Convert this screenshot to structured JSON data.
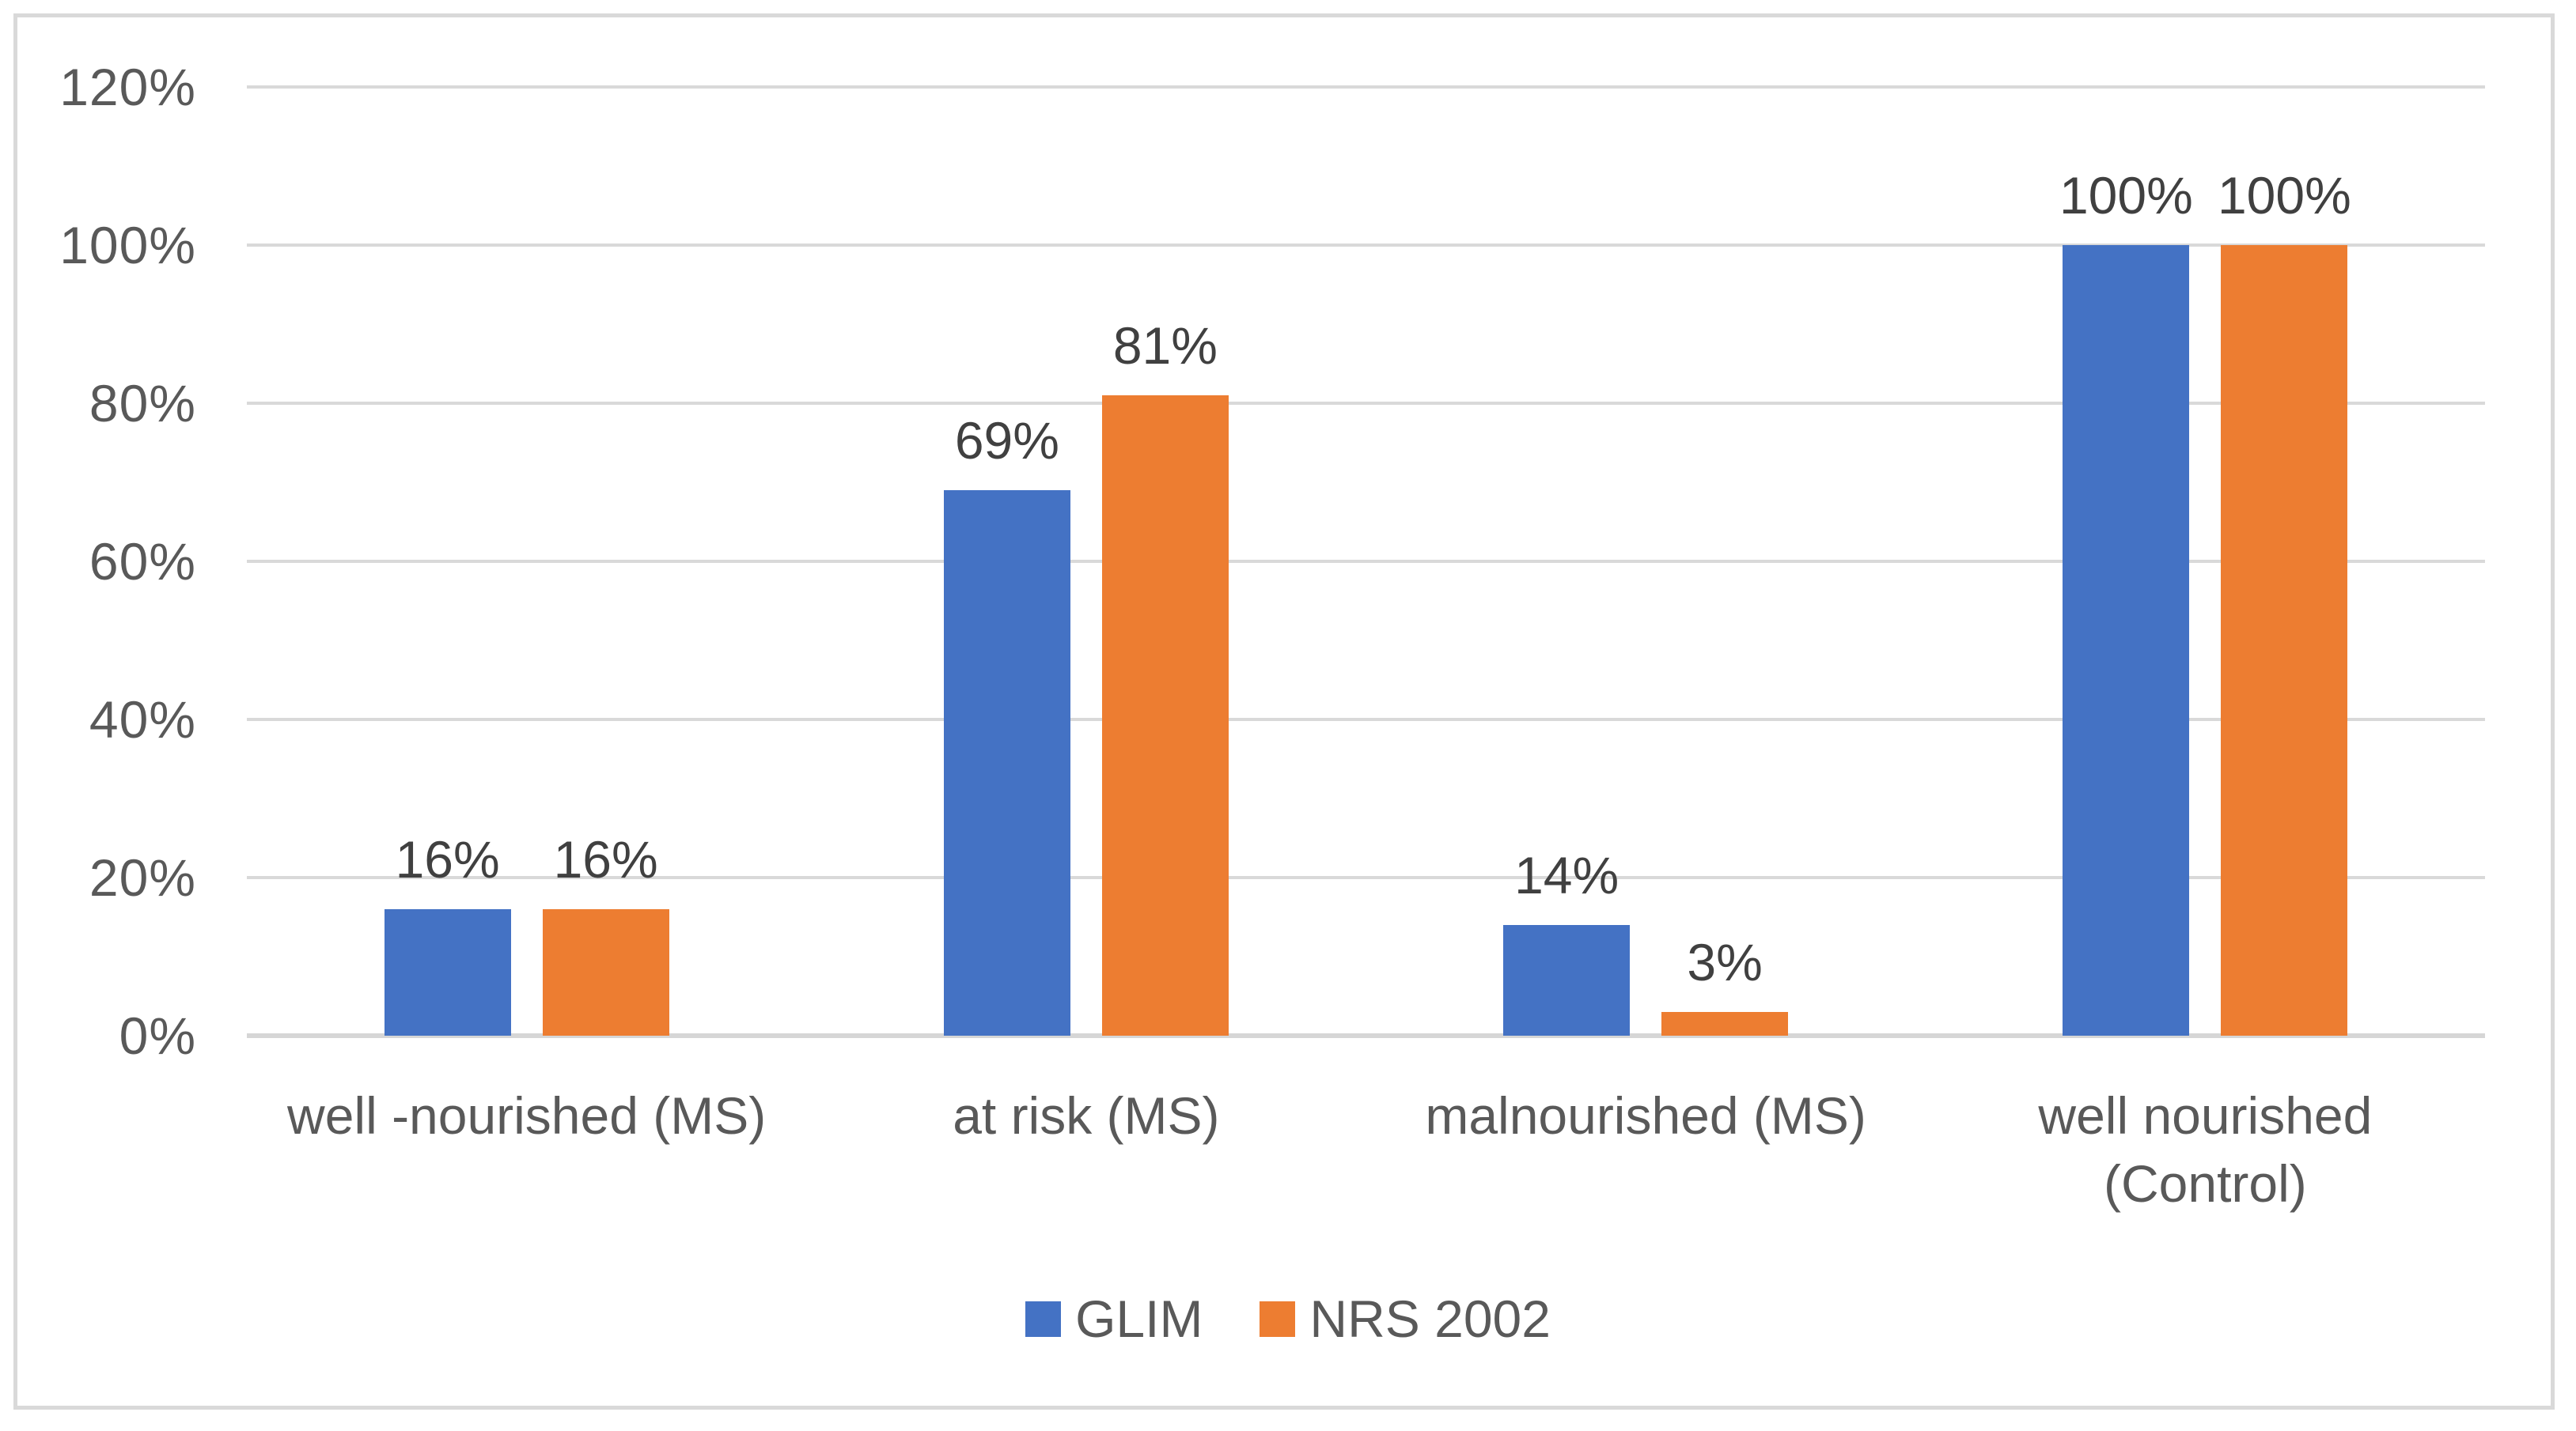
{
  "chart_data": {
    "type": "bar",
    "title": "",
    "categories": [
      "well -nourished (MS)",
      "at risk (MS)",
      "malnourished (MS)",
      "well nourished (Control)"
    ],
    "series": [
      {
        "name": "GLIM",
        "color": "#4472C4",
        "values": [
          16,
          69,
          14,
          100
        ]
      },
      {
        "name": "NRS 2002",
        "color": "#ED7D31",
        "values": [
          16,
          81,
          3,
          100
        ]
      }
    ],
    "data_labels": [
      "16%",
      "69%",
      "14%",
      "100%",
      "16%",
      "81%",
      "3%",
      "100%"
    ],
    "value_suffix": "%",
    "yticks": [
      "0%",
      "20%",
      "40%",
      "60%",
      "80%",
      "100%",
      "120%"
    ],
    "ylim": [
      0,
      120
    ],
    "grid": true,
    "legend_position": "bottom"
  },
  "colors": {
    "background": "#FFFFFF",
    "frame_border": "#D9D9D9",
    "grid": "#D9D9D9",
    "axis": "#D6D6D6",
    "tick_text": "#595959",
    "category_text": "#595959",
    "data_label_text": "#404040",
    "legend_text": "#595959"
  }
}
